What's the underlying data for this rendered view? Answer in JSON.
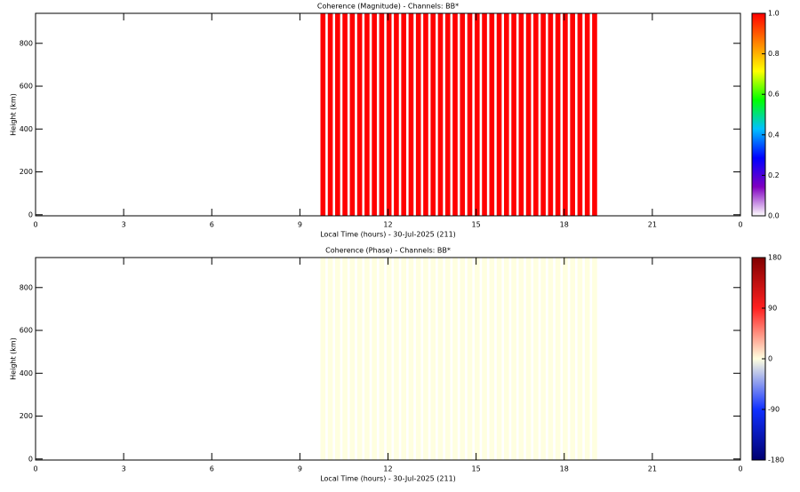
{
  "chart_data": [
    {
      "type": "stripes",
      "title": "Coherence (Magnitude) - Channels: BB*",
      "x_label": "Local Time (hours) - 30-Jul-2025 (211)",
      "y_label": "Height (km)",
      "xlim": [
        0,
        24
      ],
      "xticks": [
        0,
        3,
        6,
        9,
        12,
        15,
        18,
        21,
        {
          "value": 24,
          "label": "0"
        }
      ],
      "ylim": [
        -5,
        940
      ],
      "yticks": [
        0,
        200,
        400,
        600,
        800
      ],
      "x": [
        9.7,
        9.95,
        10.2,
        10.45,
        10.7,
        10.95,
        11.2,
        11.45,
        11.7,
        11.95,
        12.2,
        12.45,
        12.7,
        12.95,
        13.2,
        13.45,
        13.7,
        13.95,
        14.2,
        14.45,
        14.7,
        14.95,
        15.2,
        15.45,
        15.7,
        15.95,
        16.2,
        16.45,
        16.7,
        16.95,
        17.2,
        17.45,
        17.7,
        17.95,
        18.2,
        18.45,
        18.7,
        18.95
      ],
      "values": [
        1,
        1,
        1,
        1,
        1,
        1,
        1,
        1,
        1,
        1,
        1,
        1,
        1,
        1,
        1,
        1,
        1,
        1,
        1,
        1,
        1,
        1,
        1,
        1,
        1,
        1,
        1,
        1,
        1,
        1,
        1,
        1,
        1,
        1,
        1,
        1,
        1,
        1
      ],
      "colorbar": {
        "lim": [
          0,
          1
        ],
        "colors": [
          "#ffffff",
          "#8000c0",
          "#0000ff",
          "#00c0ff",
          "#00ff00",
          "#ffff00",
          "#ff8000",
          "#ff0000"
        ],
        "ticks": [
          {
            "value": 0,
            "label": "0.0"
          },
          0.2,
          0.4,
          0.6,
          0.8,
          {
            "value": 1,
            "label": "1.0"
          }
        ]
      }
    },
    {
      "type": "stripes",
      "title": "Coherence (Phase) - Channels: BB*",
      "x_label": "Local Time (hours) - 30-Jul-2025 (211)",
      "y_label": "Height (km)",
      "xlim": [
        0,
        24
      ],
      "xticks": [
        0,
        3,
        6,
        9,
        12,
        15,
        18,
        21,
        {
          "value": 24,
          "label": "0"
        }
      ],
      "ylim": [
        -5,
        940
      ],
      "yticks": [
        0,
        200,
        400,
        600,
        800
      ],
      "x": [
        9.7,
        9.95,
        10.2,
        10.45,
        10.7,
        10.95,
        11.2,
        11.45,
        11.7,
        11.95,
        12.2,
        12.45,
        12.7,
        12.95,
        13.2,
        13.45,
        13.7,
        13.95,
        14.2,
        14.45,
        14.7,
        14.95,
        15.2,
        15.45,
        15.7,
        15.95,
        16.2,
        16.45,
        16.7,
        16.95,
        17.2,
        17.45,
        17.7,
        17.95,
        18.2,
        18.45,
        18.7,
        18.95
      ],
      "values": [
        0,
        0,
        0,
        0,
        0,
        0,
        0,
        0,
        0,
        0,
        0,
        0,
        0,
        0,
        0,
        0,
        0,
        0,
        0,
        0,
        0,
        0,
        0,
        0,
        0,
        0,
        0,
        0,
        0,
        0,
        0,
        0,
        0,
        0,
        0,
        0,
        0,
        0
      ],
      "colorbar": {
        "lim": [
          -180,
          180
        ],
        "colors": [
          "#000070",
          "#1030ff",
          "#ffffe0",
          "#ff2020",
          "#800000"
        ],
        "ticks": [
          -180,
          -90,
          0,
          90,
          180
        ]
      }
    }
  ]
}
